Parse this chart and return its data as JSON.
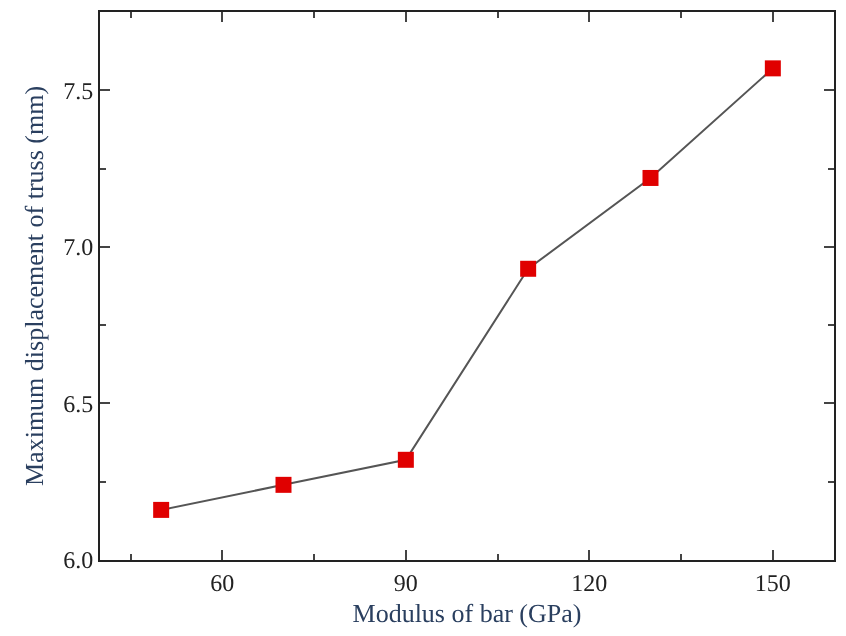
{
  "chart_data": {
    "type": "line",
    "xlabel": "Modulus of bar (GPa)",
    "ylabel": "Maximum displacement of truss (mm)",
    "x": [
      50,
      70,
      90,
      110,
      130,
      150
    ],
    "series": [
      {
        "color": "#e00000",
        "values": [
          6.16,
          6.24,
          6.32,
          6.93,
          7.22,
          7.57
        ]
      }
    ],
    "xlim": [
      40,
      160
    ],
    "xticks": [
      60,
      90,
      120,
      150
    ],
    "ylim": [
      6.0,
      7.75
    ],
    "yticks": [
      {
        "value": 6,
        "label": "6.0"
      },
      6.5,
      {
        "value": 7,
        "label": "7.0"
      },
      7.5
    ],
    "marker": "square",
    "line_style": "solid"
  }
}
